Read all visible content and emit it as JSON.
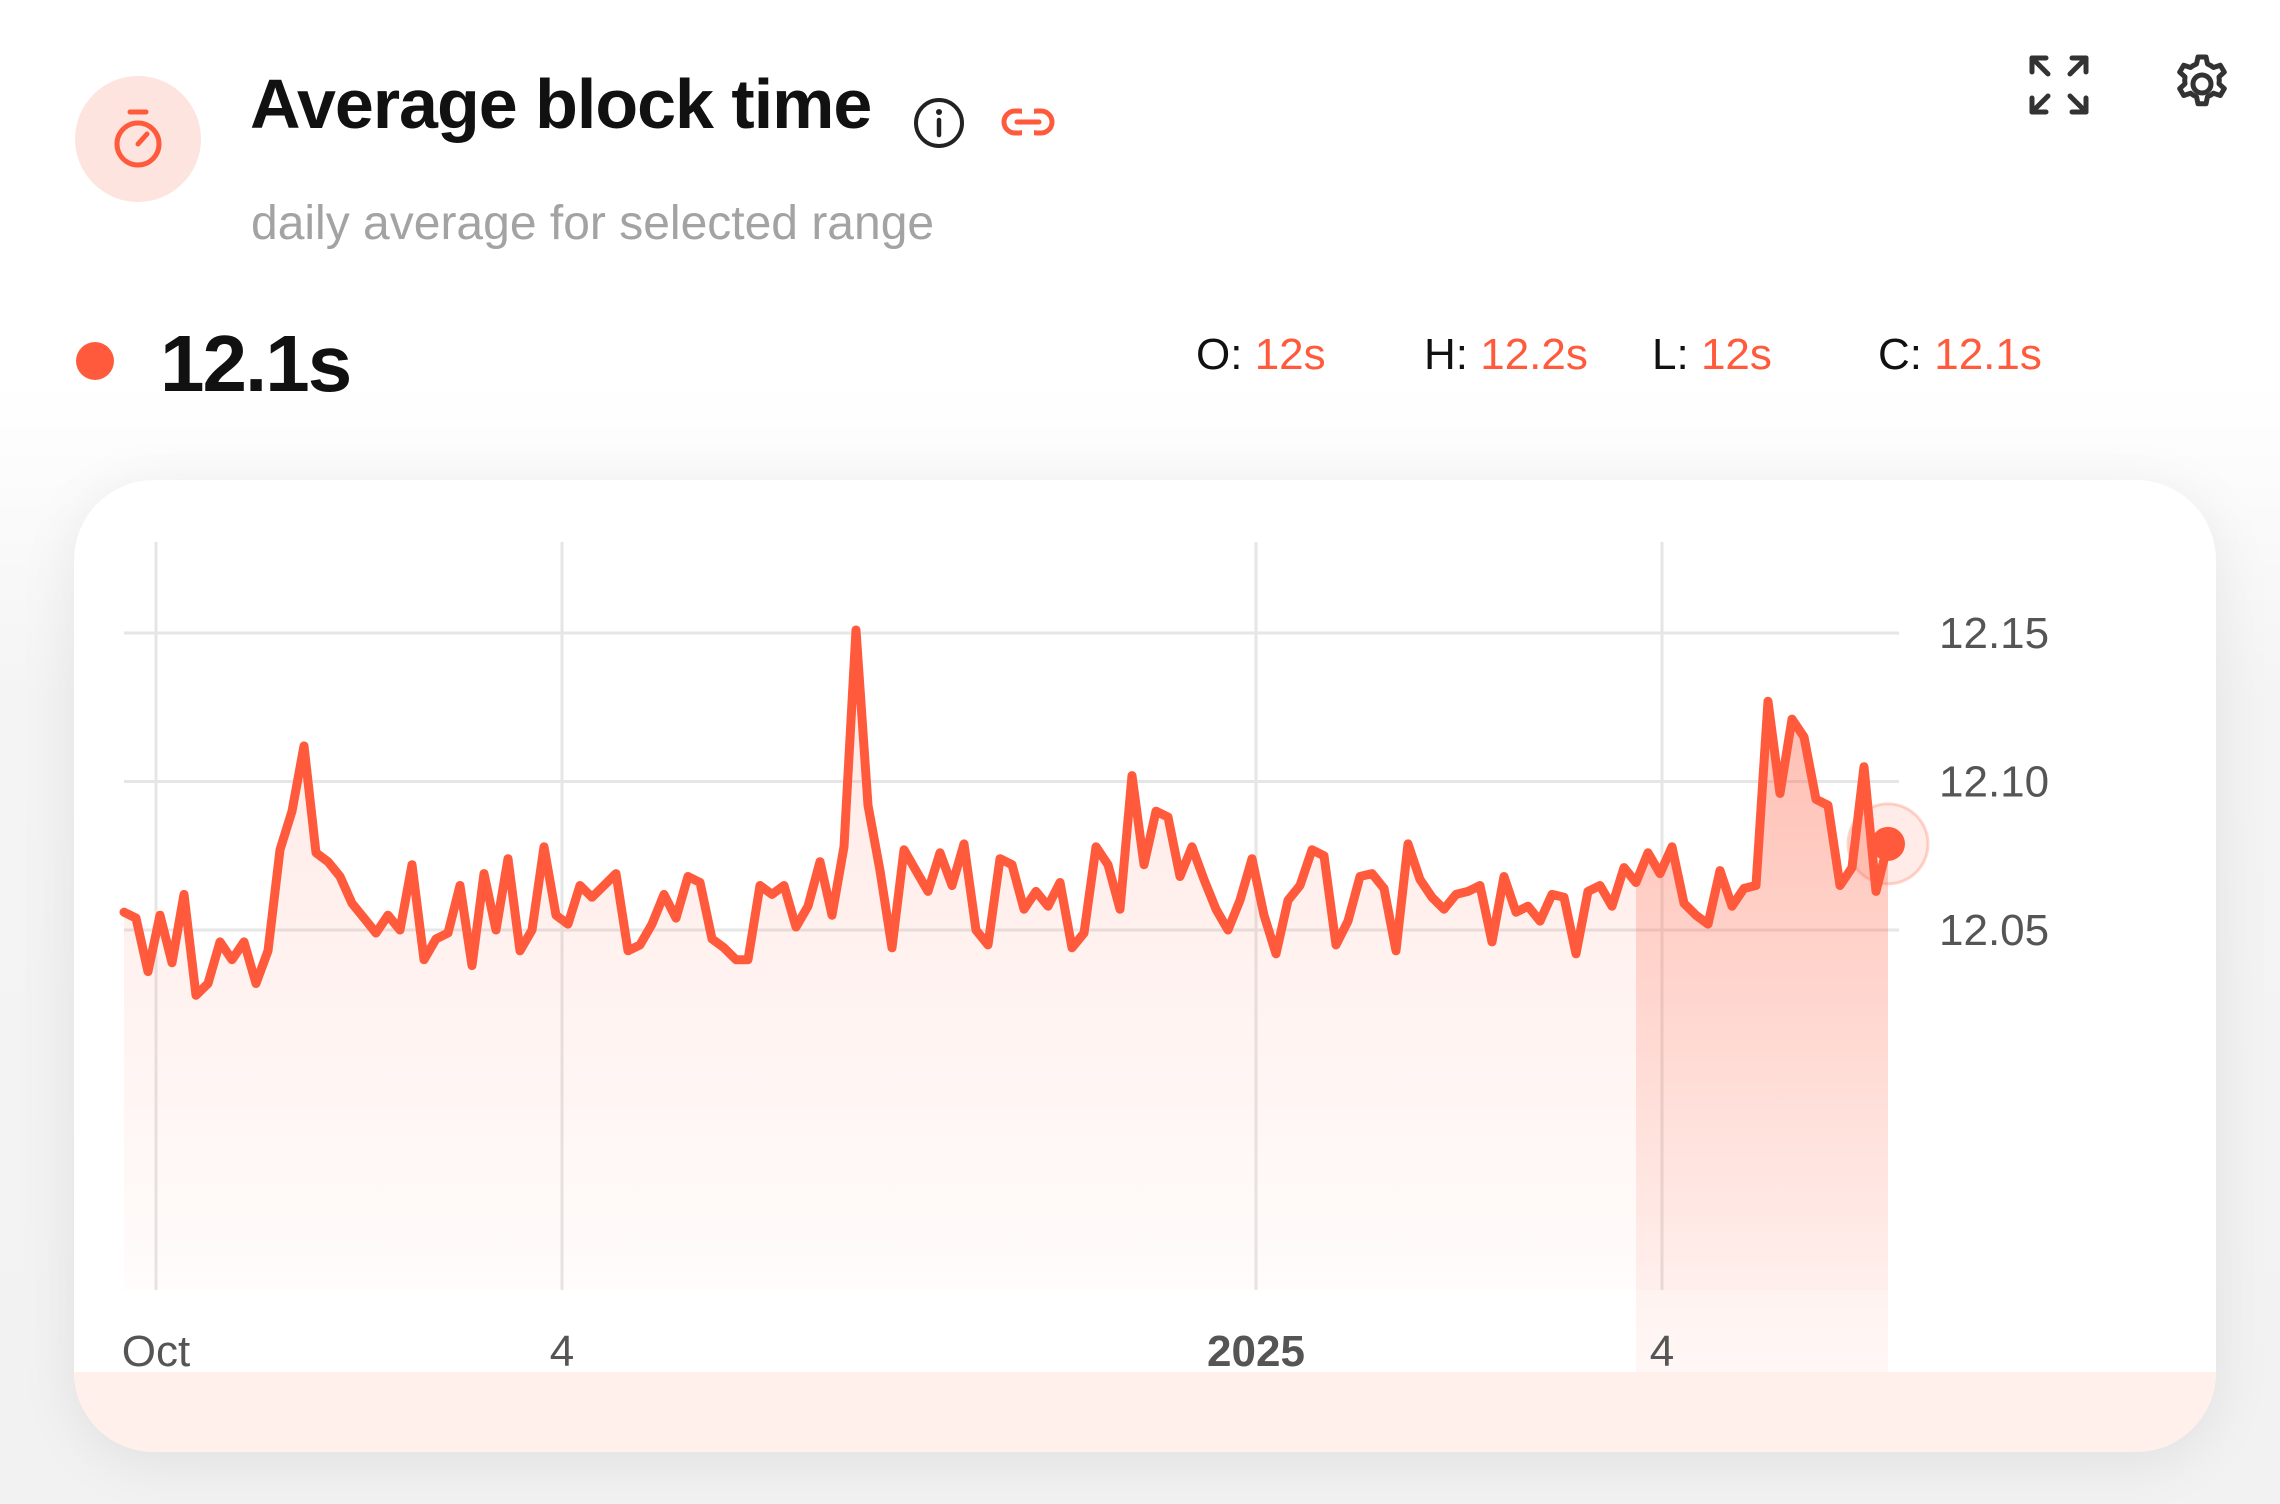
{
  "header": {
    "title": "Average block time",
    "subtitle": "daily average for selected range",
    "icons": {
      "badge": "stopwatch-icon",
      "info": "info-icon",
      "link": "link-icon",
      "expand": "expand-icon",
      "settings": "gear-icon"
    }
  },
  "summary": {
    "current_value": "12.1s",
    "open_label": "O:",
    "open_value": "12s",
    "high_label": "H:",
    "high_value": "12.2s",
    "low_label": "L:",
    "low_value": "12s",
    "close_label": "C:",
    "close_value": "12.1s"
  },
  "colors": {
    "accent": "#ff5a3c",
    "badge_bg": "#fde4de",
    "grid": "#e6e6e6"
  },
  "chart_data": {
    "type": "area",
    "x_ticks": [
      "Oct",
      "4",
      "2025",
      "4"
    ],
    "y_ticks": [
      "12.15",
      "12.10",
      "12.05"
    ],
    "ylim": [
      12.017,
      12.166
    ],
    "grid": true,
    "series": [
      {
        "values": [
          12.056,
          12.054,
          12.036,
          12.055,
          12.039,
          12.062,
          12.028,
          12.032,
          12.046,
          12.04,
          12.046,
          12.032,
          12.043,
          12.077,
          12.09,
          12.112,
          12.076,
          12.073,
          12.068,
          12.059,
          12.054,
          12.049,
          12.055,
          12.05,
          12.072,
          12.04,
          12.047,
          12.049,
          12.065,
          12.038,
          12.069,
          12.05,
          12.074,
          12.043,
          12.05,
          12.078,
          12.055,
          12.052,
          12.065,
          12.061,
          12.065,
          12.069,
          12.043,
          12.045,
          12.052,
          12.062,
          12.054,
          12.068,
          12.066,
          12.047,
          12.044,
          12.04,
          12.04,
          12.065,
          12.062,
          12.065,
          12.051,
          12.058,
          12.073,
          12.055,
          12.078,
          12.151,
          12.092,
          12.07,
          12.044,
          12.077,
          12.07,
          12.063,
          12.076,
          12.065,
          12.079,
          12.05,
          12.045,
          12.074,
          12.072,
          12.057,
          12.063,
          12.058,
          12.066,
          12.044,
          12.049,
          12.078,
          12.072,
          12.057,
          12.102,
          12.072,
          12.09,
          12.088,
          12.068,
          12.078,
          12.067,
          12.057,
          12.05,
          12.06,
          12.074,
          12.055,
          12.042,
          12.06,
          12.065,
          12.077,
          12.075,
          12.045,
          12.053,
          12.068,
          12.069,
          12.064,
          12.043,
          12.079,
          12.067,
          12.061,
          12.057,
          12.062,
          12.063,
          12.065,
          12.046,
          12.068,
          12.056,
          12.058,
          12.053,
          12.062,
          12.061,
          12.042,
          12.063,
          12.065,
          12.058,
          12.071,
          12.066,
          12.076,
          12.069,
          12.078,
          12.059,
          12.055,
          12.052,
          12.07,
          12.058,
          12.064,
          12.065,
          12.127,
          12.096,
          12.121,
          12.115,
          12.094,
          12.092,
          12.065,
          12.071,
          12.105,
          12.063,
          12.079
        ]
      }
    ]
  }
}
